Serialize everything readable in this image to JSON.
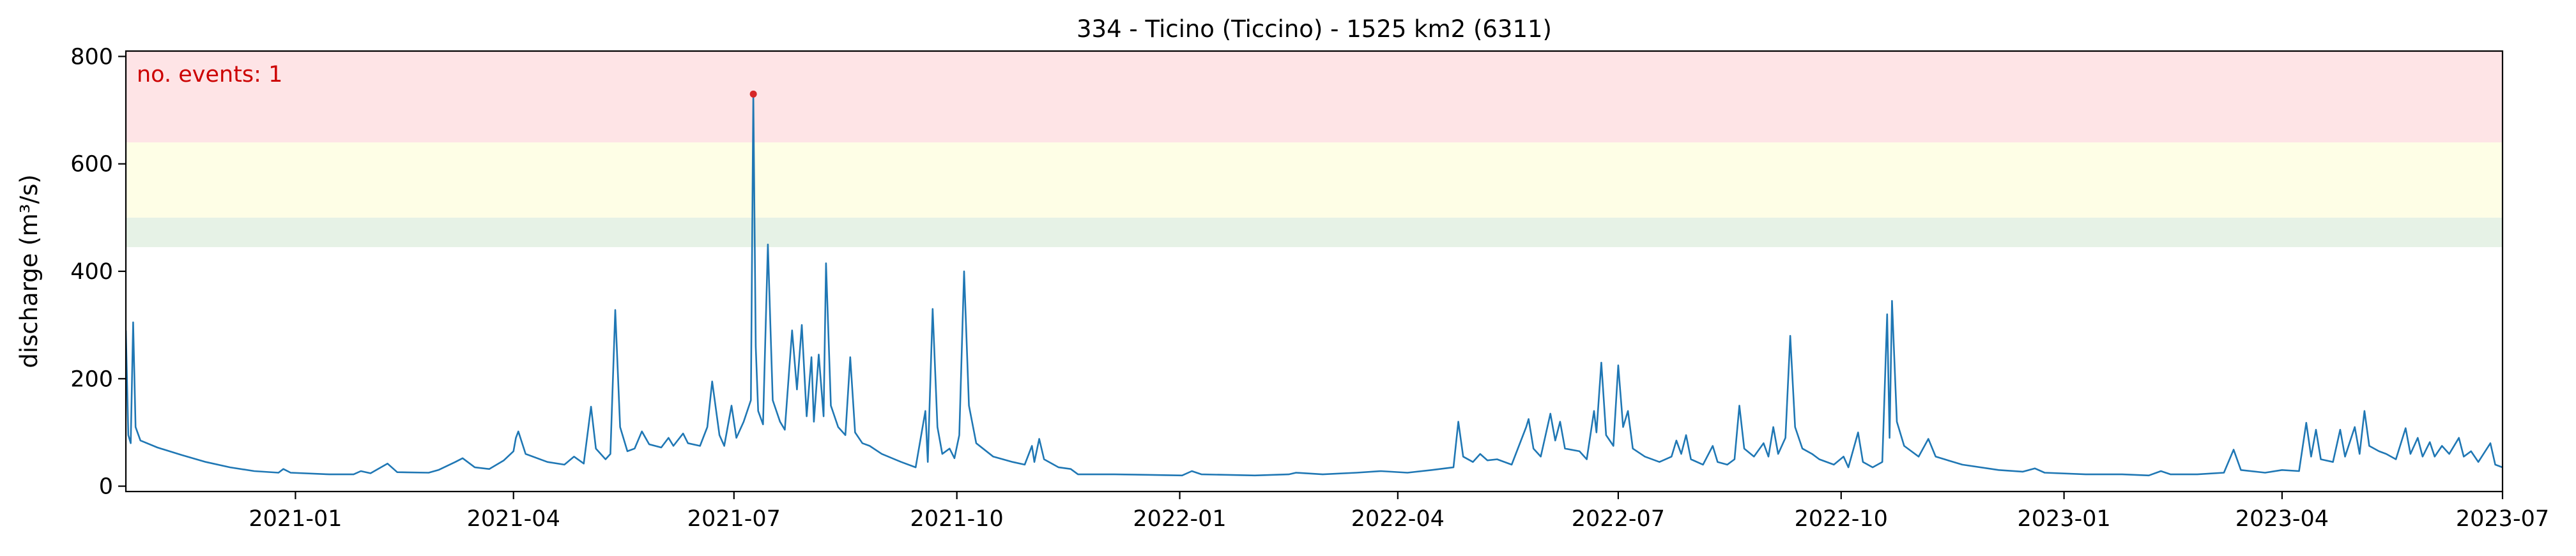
{
  "chart_data": {
    "type": "line",
    "title": "334 - Ticino (Ticcino) - 1525 km2 (6311)",
    "xlabel": "",
    "ylabel": "discharge (m³/s)",
    "xlim": [
      "2020-10-23",
      "2023-07-01"
    ],
    "ylim": [
      -10,
      810
    ],
    "grid": false,
    "x_ticks": [
      "2021-01",
      "2021-04",
      "2021-07",
      "2021-10",
      "2022-01",
      "2022-04",
      "2022-07",
      "2022-10",
      "2023-01",
      "2023-04",
      "2023-07"
    ],
    "y_ticks": [
      0,
      200,
      400,
      600,
      800
    ],
    "threshold_bands": [
      {
        "level": "low",
        "from": 445,
        "to": 500,
        "color": "#e6f2e6"
      },
      {
        "level": "medium",
        "from": 500,
        "to": 640,
        "color": "#fefee6"
      },
      {
        "level": "high",
        "from": 640,
        "to": 810,
        "color": "#fee4e6"
      }
    ],
    "annotation": {
      "text": "no. events: 1",
      "color": "#cc0000"
    },
    "events": [
      {
        "date": "2021-07-09",
        "value": 730,
        "color": "#d62728"
      }
    ],
    "series": [
      {
        "color": "#1f77b4",
        "points": [
          [
            "2020-10-23",
            290
          ],
          [
            "2020-10-24",
            95
          ],
          [
            "2020-10-25",
            80
          ],
          [
            "2020-10-26",
            305
          ],
          [
            "2020-10-27",
            110
          ],
          [
            "2020-10-29",
            85
          ],
          [
            "2020-11-05",
            72
          ],
          [
            "2020-11-15",
            58
          ],
          [
            "2020-11-25",
            45
          ],
          [
            "2020-12-05",
            35
          ],
          [
            "2020-12-15",
            28
          ],
          [
            "2020-12-25",
            25
          ],
          [
            "2020-12-27",
            32
          ],
          [
            "2020-12-30",
            25
          ],
          [
            "2021-01-15",
            22
          ],
          [
            "2021-01-25",
            22
          ],
          [
            "2021-01-28",
            28
          ],
          [
            "2021-02-01",
            24
          ],
          [
            "2021-02-08",
            42
          ],
          [
            "2021-02-12",
            26
          ],
          [
            "2021-02-25",
            25
          ],
          [
            "2021-03-01",
            30
          ],
          [
            "2021-03-08",
            45
          ],
          [
            "2021-03-11",
            52
          ],
          [
            "2021-03-16",
            35
          ],
          [
            "2021-03-22",
            32
          ],
          [
            "2021-03-28",
            48
          ],
          [
            "2021-04-01",
            65
          ],
          [
            "2021-04-02",
            90
          ],
          [
            "2021-04-03",
            102
          ],
          [
            "2021-04-06",
            60
          ],
          [
            "2021-04-15",
            45
          ],
          [
            "2021-04-22",
            40
          ],
          [
            "2021-04-26",
            55
          ],
          [
            "2021-04-30",
            42
          ],
          [
            "2021-05-03",
            148
          ],
          [
            "2021-05-05",
            70
          ],
          [
            "2021-05-09",
            50
          ],
          [
            "2021-05-11",
            60
          ],
          [
            "2021-05-13",
            328
          ],
          [
            "2021-05-15",
            110
          ],
          [
            "2021-05-18",
            65
          ],
          [
            "2021-05-21",
            70
          ],
          [
            "2021-05-24",
            102
          ],
          [
            "2021-05-27",
            78
          ],
          [
            "2021-06-01",
            72
          ],
          [
            "2021-06-04",
            90
          ],
          [
            "2021-06-06",
            75
          ],
          [
            "2021-06-10",
            98
          ],
          [
            "2021-06-12",
            80
          ],
          [
            "2021-06-17",
            75
          ],
          [
            "2021-06-20",
            110
          ],
          [
            "2021-06-22",
            195
          ],
          [
            "2021-06-25",
            95
          ],
          [
            "2021-06-27",
            75
          ],
          [
            "2021-06-30",
            150
          ],
          [
            "2021-07-02",
            90
          ],
          [
            "2021-07-05",
            120
          ],
          [
            "2021-07-08",
            160
          ],
          [
            "2021-07-09",
            730
          ],
          [
            "2021-07-10",
            260
          ],
          [
            "2021-07-11",
            140
          ],
          [
            "2021-07-13",
            115
          ],
          [
            "2021-07-15",
            450
          ],
          [
            "2021-07-17",
            160
          ],
          [
            "2021-07-20",
            120
          ],
          [
            "2021-07-22",
            105
          ],
          [
            "2021-07-25",
            290
          ],
          [
            "2021-07-27",
            180
          ],
          [
            "2021-07-29",
            300
          ],
          [
            "2021-07-31",
            130
          ],
          [
            "2021-08-02",
            240
          ],
          [
            "2021-08-03",
            120
          ],
          [
            "2021-08-05",
            245
          ],
          [
            "2021-08-07",
            130
          ],
          [
            "2021-08-08",
            415
          ],
          [
            "2021-08-10",
            150
          ],
          [
            "2021-08-13",
            110
          ],
          [
            "2021-08-16",
            95
          ],
          [
            "2021-08-18",
            240
          ],
          [
            "2021-08-20",
            100
          ],
          [
            "2021-08-23",
            80
          ],
          [
            "2021-08-26",
            75
          ],
          [
            "2021-08-31",
            60
          ],
          [
            "2021-09-08",
            45
          ],
          [
            "2021-09-14",
            35
          ],
          [
            "2021-09-18",
            140
          ],
          [
            "2021-09-19",
            45
          ],
          [
            "2021-09-21",
            330
          ],
          [
            "2021-09-23",
            110
          ],
          [
            "2021-09-25",
            60
          ],
          [
            "2021-09-28",
            70
          ],
          [
            "2021-09-30",
            52
          ],
          [
            "2021-10-02",
            95
          ],
          [
            "2021-10-04",
            400
          ],
          [
            "2021-10-06",
            150
          ],
          [
            "2021-10-09",
            80
          ],
          [
            "2021-10-16",
            55
          ],
          [
            "2021-10-24",
            45
          ],
          [
            "2021-10-29",
            40
          ],
          [
            "2021-11-01",
            75
          ],
          [
            "2021-11-02",
            45
          ],
          [
            "2021-11-04",
            88
          ],
          [
            "2021-11-06",
            50
          ],
          [
            "2021-11-12",
            35
          ],
          [
            "2021-11-17",
            32
          ],
          [
            "2021-11-20",
            22
          ],
          [
            "2021-12-05",
            22
          ],
          [
            "2021-12-20",
            21
          ],
          [
            "2022-01-02",
            20
          ],
          [
            "2022-01-06",
            28
          ],
          [
            "2022-01-10",
            22
          ],
          [
            "2022-02-01",
            20
          ],
          [
            "2022-02-15",
            22
          ],
          [
            "2022-02-18",
            25
          ],
          [
            "2022-03-01",
            22
          ],
          [
            "2022-03-15",
            25
          ],
          [
            "2022-03-25",
            28
          ],
          [
            "2022-04-05",
            25
          ],
          [
            "2022-04-15",
            30
          ],
          [
            "2022-04-24",
            35
          ],
          [
            "2022-04-26",
            120
          ],
          [
            "2022-04-28",
            55
          ],
          [
            "2022-05-02",
            45
          ],
          [
            "2022-05-05",
            60
          ],
          [
            "2022-05-08",
            48
          ],
          [
            "2022-05-12",
            50
          ],
          [
            "2022-05-18",
            40
          ],
          [
            "2022-05-24",
            110
          ],
          [
            "2022-05-25",
            125
          ],
          [
            "2022-05-27",
            70
          ],
          [
            "2022-05-30",
            55
          ],
          [
            "2022-06-03",
            135
          ],
          [
            "2022-06-05",
            85
          ],
          [
            "2022-06-07",
            120
          ],
          [
            "2022-06-09",
            70
          ],
          [
            "2022-06-15",
            65
          ],
          [
            "2022-06-18",
            50
          ],
          [
            "2022-06-21",
            140
          ],
          [
            "2022-06-22",
            100
          ],
          [
            "2022-06-24",
            230
          ],
          [
            "2022-06-26",
            95
          ],
          [
            "2022-06-29",
            75
          ],
          [
            "2022-07-01",
            225
          ],
          [
            "2022-07-03",
            110
          ],
          [
            "2022-07-05",
            140
          ],
          [
            "2022-07-07",
            70
          ],
          [
            "2022-07-12",
            55
          ],
          [
            "2022-07-18",
            45
          ],
          [
            "2022-07-23",
            55
          ],
          [
            "2022-07-25",
            85
          ],
          [
            "2022-07-27",
            60
          ],
          [
            "2022-07-29",
            95
          ],
          [
            "2022-07-31",
            50
          ],
          [
            "2022-08-05",
            40
          ],
          [
            "2022-08-09",
            75
          ],
          [
            "2022-08-11",
            45
          ],
          [
            "2022-08-15",
            40
          ],
          [
            "2022-08-18",
            50
          ],
          [
            "2022-08-20",
            150
          ],
          [
            "2022-08-22",
            70
          ],
          [
            "2022-08-26",
            55
          ],
          [
            "2022-08-30",
            80
          ],
          [
            "2022-09-01",
            55
          ],
          [
            "2022-09-03",
            110
          ],
          [
            "2022-09-05",
            60
          ],
          [
            "2022-09-08",
            90
          ],
          [
            "2022-09-10",
            280
          ],
          [
            "2022-09-12",
            110
          ],
          [
            "2022-09-15",
            70
          ],
          [
            "2022-09-19",
            60
          ],
          [
            "2022-09-22",
            50
          ],
          [
            "2022-09-28",
            40
          ],
          [
            "2022-10-02",
            55
          ],
          [
            "2022-10-04",
            35
          ],
          [
            "2022-10-08",
            100
          ],
          [
            "2022-10-10",
            45
          ],
          [
            "2022-10-14",
            35
          ],
          [
            "2022-10-18",
            45
          ],
          [
            "2022-10-20",
            320
          ],
          [
            "2022-10-21",
            90
          ],
          [
            "2022-10-22",
            345
          ],
          [
            "2022-10-24",
            120
          ],
          [
            "2022-10-27",
            75
          ],
          [
            "2022-11-02",
            55
          ],
          [
            "2022-11-06",
            88
          ],
          [
            "2022-11-09",
            55
          ],
          [
            "2022-11-20",
            40
          ],
          [
            "2022-12-05",
            30
          ],
          [
            "2022-12-15",
            27
          ],
          [
            "2022-12-20",
            33
          ],
          [
            "2022-12-24",
            25
          ],
          [
            "2023-01-10",
            22
          ],
          [
            "2023-01-25",
            22
          ],
          [
            "2023-02-05",
            20
          ],
          [
            "2023-02-10",
            28
          ],
          [
            "2023-02-14",
            22
          ],
          [
            "2023-02-25",
            22
          ],
          [
            "2023-03-08",
            25
          ],
          [
            "2023-03-12",
            68
          ],
          [
            "2023-03-15",
            30
          ],
          [
            "2023-03-25",
            25
          ],
          [
            "2023-04-01",
            30
          ],
          [
            "2023-04-08",
            28
          ],
          [
            "2023-04-11",
            118
          ],
          [
            "2023-04-13",
            55
          ],
          [
            "2023-04-15",
            105
          ],
          [
            "2023-04-17",
            50
          ],
          [
            "2023-04-22",
            45
          ],
          [
            "2023-04-25",
            105
          ],
          [
            "2023-04-27",
            55
          ],
          [
            "2023-05-01",
            110
          ],
          [
            "2023-05-03",
            60
          ],
          [
            "2023-05-05",
            140
          ],
          [
            "2023-05-07",
            75
          ],
          [
            "2023-05-11",
            65
          ],
          [
            "2023-05-14",
            60
          ],
          [
            "2023-05-18",
            50
          ],
          [
            "2023-05-22",
            108
          ],
          [
            "2023-05-24",
            60
          ],
          [
            "2023-05-27",
            90
          ],
          [
            "2023-05-29",
            55
          ],
          [
            "2023-06-01",
            82
          ],
          [
            "2023-06-03",
            55
          ],
          [
            "2023-06-06",
            75
          ],
          [
            "2023-06-09",
            60
          ],
          [
            "2023-06-13",
            90
          ],
          [
            "2023-06-15",
            55
          ],
          [
            "2023-06-18",
            65
          ],
          [
            "2023-06-21",
            45
          ],
          [
            "2023-06-26",
            80
          ],
          [
            "2023-06-28",
            40
          ],
          [
            "2023-07-01",
            35
          ]
        ]
      }
    ]
  }
}
